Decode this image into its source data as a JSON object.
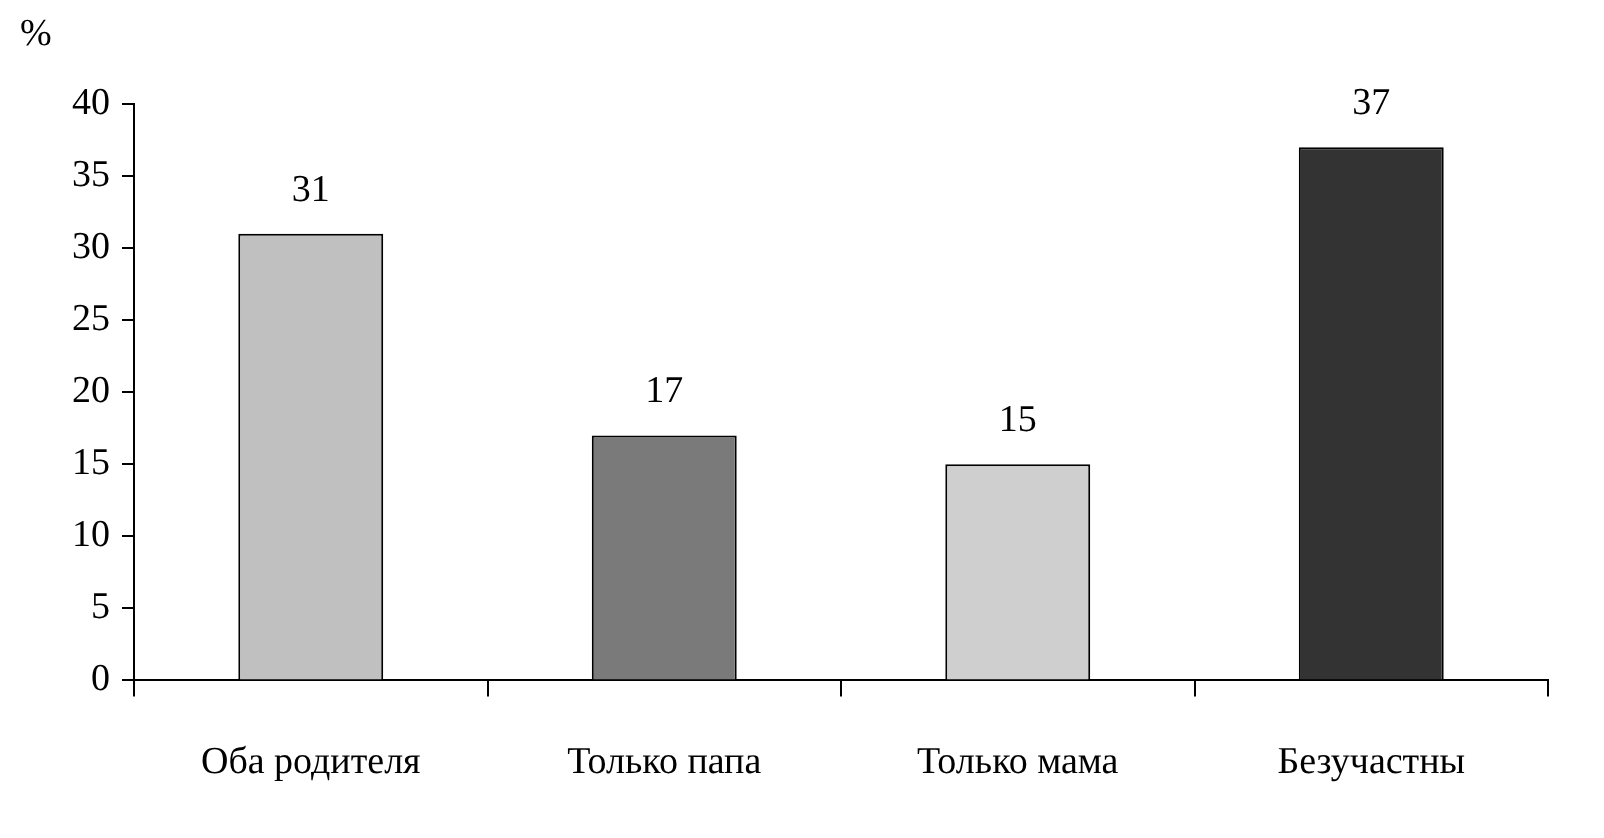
{
  "chart_data": {
    "type": "bar",
    "ylabel": "%",
    "categories": [
      "Оба родителя",
      "Только папа",
      "Только мама",
      "Безучастны"
    ],
    "values": [
      31,
      17,
      15,
      37
    ],
    "colors": [
      "#c0c0c0",
      "#7a7a7a",
      "#cfcfcf",
      "#333333"
    ],
    "ylim": [
      0,
      40
    ],
    "yticks": [
      0,
      5,
      10,
      15,
      20,
      25,
      30,
      35,
      40
    ],
    "grid": false,
    "legend": false,
    "data_labels": true
  }
}
